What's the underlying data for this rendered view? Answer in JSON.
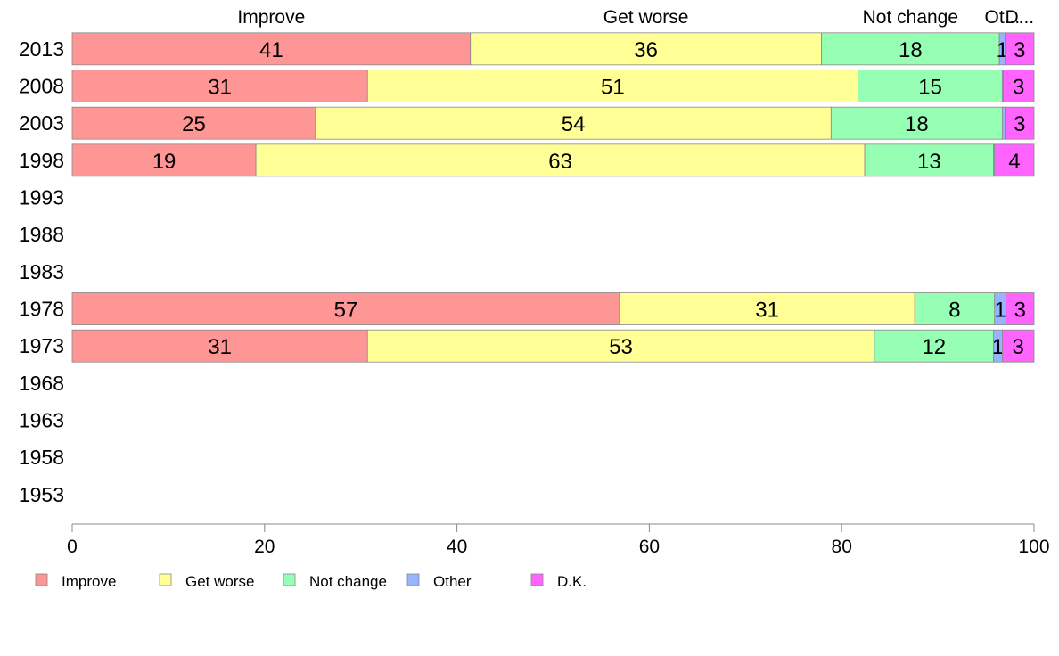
{
  "chart_data": {
    "type": "bar",
    "orientation": "horizontal",
    "stacked": true,
    "categories": [
      "2013",
      "2008",
      "2003",
      "1998",
      "1993",
      "1988",
      "1983",
      "1978",
      "1973",
      "1968",
      "1963",
      "1958",
      "1953"
    ],
    "series": [
      {
        "name": "Improve",
        "color": "#ff9696",
        "values": [
          41.4,
          30.7,
          25.3,
          19.1,
          null,
          null,
          null,
          56.9,
          30.7,
          null,
          null,
          null,
          null
        ],
        "labels": [
          "41",
          "31",
          "25",
          "19",
          "",
          "",
          "",
          "57",
          "31",
          "",
          "",
          "",
          ""
        ]
      },
      {
        "name": "Get worse",
        "color": "#ffff96",
        "values": [
          36.5,
          51.0,
          53.6,
          63.3,
          null,
          null,
          null,
          30.7,
          52.7,
          null,
          null,
          null,
          null
        ],
        "labels": [
          "36",
          "51",
          "54",
          "63",
          "",
          "",
          "",
          "31",
          "53",
          "",
          "",
          "",
          ""
        ]
      },
      {
        "name": "Not change",
        "color": "#96ffb4",
        "values": [
          18.5,
          15.0,
          17.8,
          13.4,
          null,
          null,
          null,
          8.3,
          12.4,
          null,
          null,
          null,
          null
        ],
        "labels": [
          "18",
          "15",
          "18",
          "13",
          "",
          "",
          "",
          "8",
          "12",
          "",
          "",
          "",
          ""
        ]
      },
      {
        "name": "Other",
        "color": "#96b4ff",
        "values": [
          0.6,
          0.1,
          0.3,
          0.1,
          null,
          null,
          null,
          1.2,
          0.9,
          null,
          null,
          null,
          null
        ],
        "labels": [
          "1",
          "",
          "",
          "",
          "",
          "",
          "",
          "1",
          "1",
          "",
          "",
          "",
          ""
        ]
      },
      {
        "name": "D.K.",
        "color": "#ff64ff",
        "values": [
          3.0,
          3.2,
          3.0,
          4.1,
          null,
          null,
          null,
          2.9,
          3.3,
          null,
          null,
          null,
          null
        ],
        "labels": [
          "3",
          "3",
          "3",
          "4",
          "",
          "",
          "",
          "3",
          "3",
          "",
          "",
          "",
          ""
        ]
      }
    ],
    "top_labels": [
      "Improve",
      "Get worse",
      "Not change",
      "Ot...",
      "D..."
    ],
    "xlim": [
      0,
      100
    ],
    "xticks": [
      "0",
      "20",
      "40",
      "60",
      "80",
      "100"
    ],
    "grid": false,
    "legend_position": "bottom-left"
  }
}
